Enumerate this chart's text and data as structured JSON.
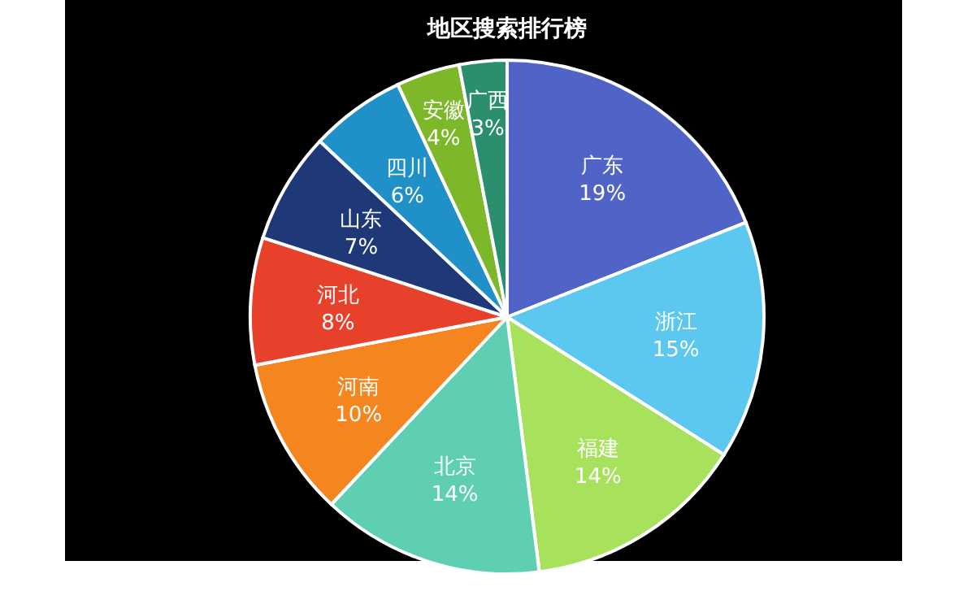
{
  "chart_data": {
    "type": "pie",
    "title": "地区搜索排行榜",
    "categories": [
      "广东",
      "浙江",
      "福建",
      "北京",
      "河南",
      "河北",
      "山东",
      "四川",
      "安徽",
      "广西"
    ],
    "values": [
      19,
      15,
      14,
      14,
      10,
      8,
      7,
      6,
      4,
      3
    ],
    "value_labels": [
      "19%",
      "15%",
      "14%",
      "14%",
      "10%",
      "8%",
      "7%",
      "6%",
      "4%",
      "3%"
    ],
    "colors": [
      "#5064c8",
      "#5cc8f0",
      "#a8e25c",
      "#5ecfb2",
      "#f5861f",
      "#e8412b",
      "#1f3878",
      "#1f90c8",
      "#7db82b",
      "#2b8e6e"
    ]
  }
}
